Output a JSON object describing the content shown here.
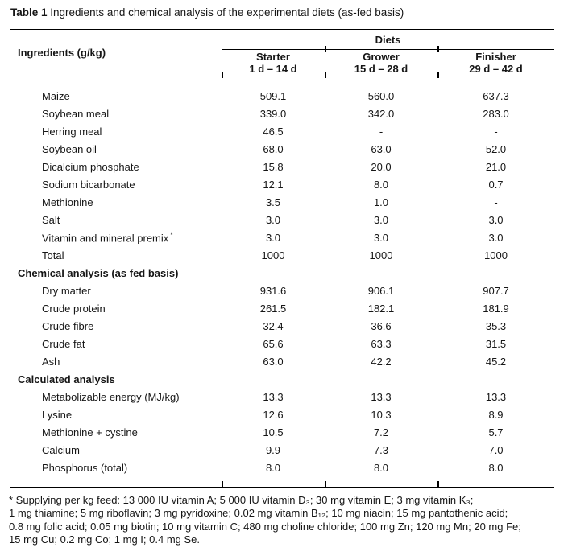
{
  "caption": {
    "label": "Table 1",
    "text": " Ingredients and chemical analysis of the experimental diets (as-fed basis)"
  },
  "table": {
    "left_header": "Ingredients (g/kg)",
    "group_header": "Diets",
    "columns": [
      {
        "label": "Starter",
        "sublabel": "1 d – 14 d"
      },
      {
        "label": "Grower",
        "sublabel": "15 d – 28 d"
      },
      {
        "label": "Finisher",
        "sublabel": "29 d – 42 d"
      }
    ],
    "sections": [
      {
        "header": "",
        "rows": [
          {
            "label": "Maize",
            "values": [
              "509.1",
              "560.0",
              "637.3"
            ]
          },
          {
            "label": "Soybean meal",
            "values": [
              "339.0",
              "342.0",
              "283.0"
            ]
          },
          {
            "label": "Herring meal",
            "values": [
              "46.5",
              "-",
              "-"
            ]
          },
          {
            "label": "Soybean oil",
            "values": [
              "68.0",
              "63.0",
              "52.0"
            ]
          },
          {
            "label": "Dicalcium phosphate",
            "values": [
              "15.8",
              "20.0",
              "21.0"
            ]
          },
          {
            "label": "Sodium bicarbonate",
            "values": [
              "12.1",
              "8.0",
              "0.7"
            ]
          },
          {
            "label": "Methionine",
            "values": [
              "3.5",
              "1.0",
              "-"
            ]
          },
          {
            "label": "Salt",
            "values": [
              "3.0",
              "3.0",
              "3.0"
            ]
          },
          {
            "label": "Vitamin and mineral premix",
            "sup": "*",
            "values": [
              "3.0",
              "3.0",
              "3.0"
            ]
          },
          {
            "label": "Total",
            "values": [
              "1000",
              "1000",
              "1000"
            ]
          }
        ]
      },
      {
        "header": "Chemical analysis (as fed basis)",
        "rows": [
          {
            "label": "Dry matter",
            "values": [
              "931.6",
              "906.1",
              "907.7"
            ]
          },
          {
            "label": "Crude protein",
            "values": [
              "261.5",
              "182.1",
              "181.9"
            ]
          },
          {
            "label": "Crude fibre",
            "values": [
              "32.4",
              "36.6",
              "35.3"
            ]
          },
          {
            "label": "Crude fat",
            "values": [
              "65.6",
              "63.3",
              "31.5"
            ]
          },
          {
            "label": "Ash",
            "values": [
              "63.0",
              "42.2",
              "45.2"
            ]
          }
        ]
      },
      {
        "header": "Calculated analysis",
        "rows": [
          {
            "label": "Metabolizable energy (MJ/kg)",
            "values": [
              "13.3",
              "13.3",
              "13.3"
            ]
          },
          {
            "label": "Lysine",
            "values": [
              "12.6",
              "10.3",
              "8.9"
            ]
          },
          {
            "label": "Methionine + cystine",
            "values": [
              "10.5",
              "7.2",
              "5.7"
            ]
          },
          {
            "label": "Calcium",
            "values": [
              "9.9",
              "7.3",
              "7.0"
            ]
          },
          {
            "label": "Phosphorus (total)",
            "values": [
              "8.0",
              "8.0",
              "8.0"
            ]
          }
        ]
      }
    ]
  },
  "footnote": {
    "lines": [
      "* Supplying per kg feed: 13 000 IU vitamin A; 5 000 IU vitamin D₃; 30 mg vitamin E; 3 mg vitamin K₃;",
      "1 mg thiamine; 5 mg riboflavin; 3 mg pyridoxine; 0.02 mg vitamin B₁₂; 10 mg niacin; 15 mg pantothenic acid;",
      "0.8 mg folic acid; 0.05 mg biotin; 10 mg vitamin C; 480 mg choline chloride; 100 mg Zn; 120 mg Mn; 20 mg Fe;",
      "15 mg Cu; 0.2 mg Co; 1 mg I; 0.4 mg Se."
    ]
  }
}
